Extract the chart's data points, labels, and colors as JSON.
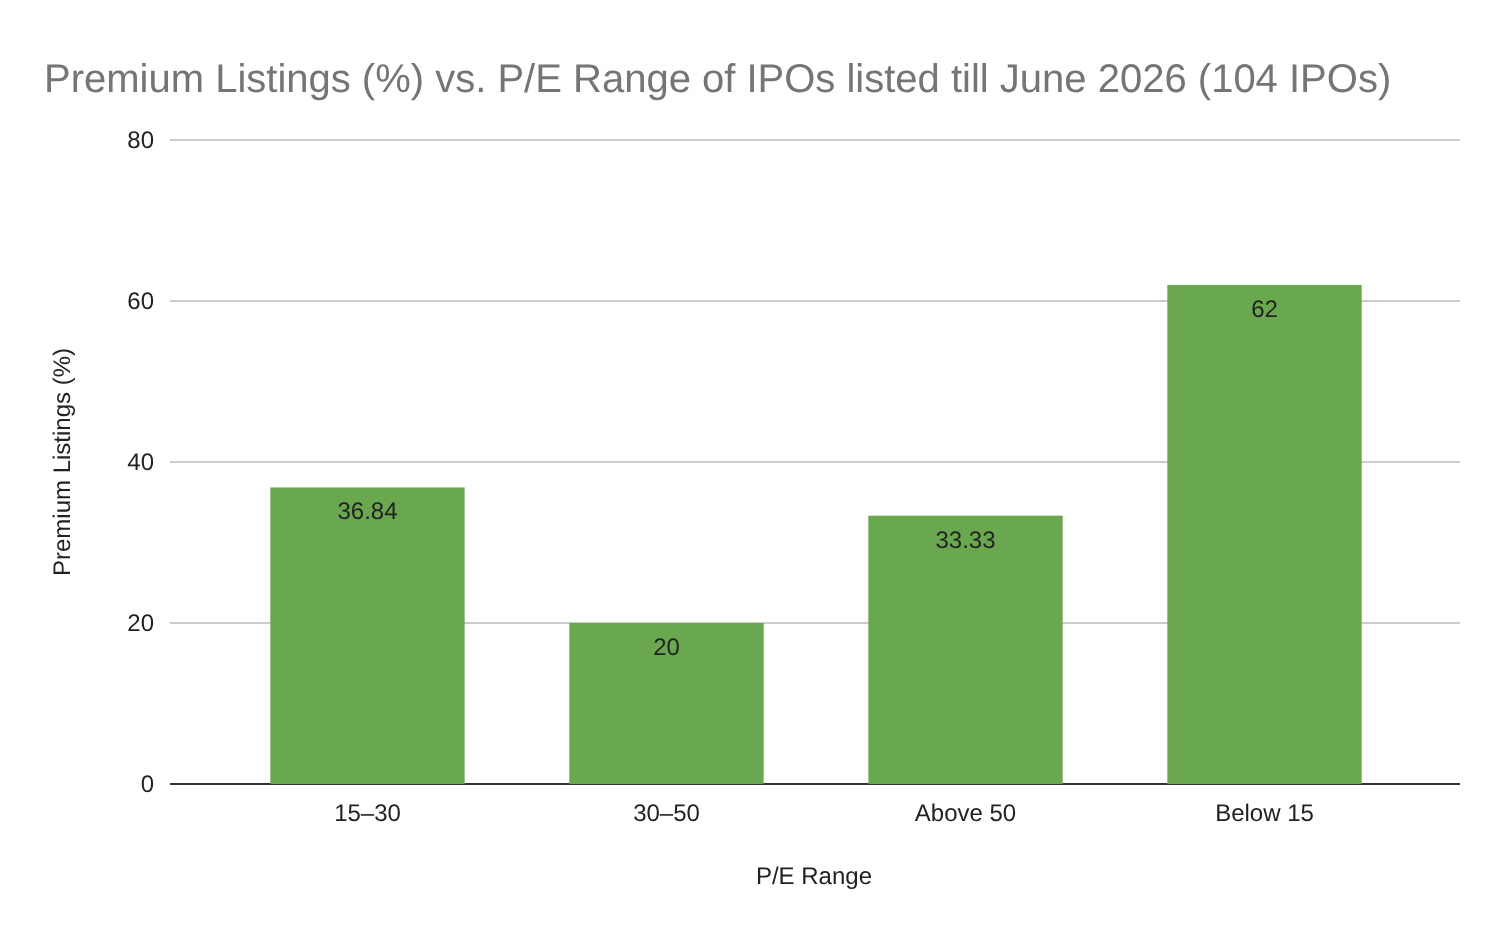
{
  "chart_data": {
    "type": "bar",
    "title": "Premium Listings (%) vs. P/E Range of IPOs listed till June 2026 (104 IPOs)",
    "xlabel": "P/E Range",
    "ylabel": "Premium Listings (%)",
    "categories": [
      "15–30",
      "30–50",
      "Above 50",
      "Below 15"
    ],
    "values": [
      36.84,
      20,
      33.33,
      62
    ],
    "color": "#6aa84f",
    "ylim": [
      0,
      80
    ],
    "yticks": [
      0,
      20,
      40,
      60,
      80
    ],
    "grid": "y",
    "data_labels": true
  }
}
